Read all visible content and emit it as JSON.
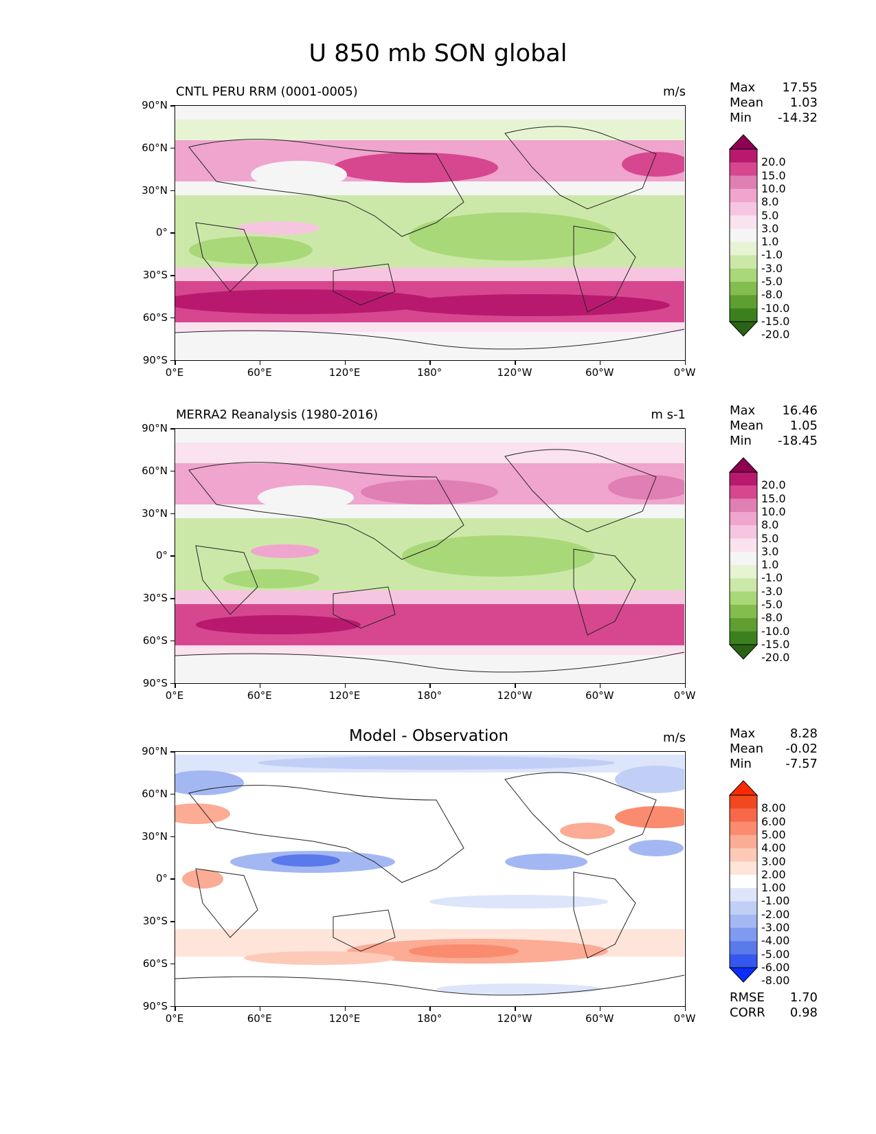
{
  "figure_title": "U 850 mb SON global",
  "x_ticks": [
    "0°E",
    "60°E",
    "120°E",
    "180°",
    "120°W",
    "60°W",
    "0°W"
  ],
  "y_ticks": [
    "90°N",
    "60°N",
    "30°N",
    "0°",
    "30°S",
    "60°S",
    "90°S"
  ],
  "panels": [
    {
      "title": "CNTL PERU RRM (0001-0005)",
      "units": "m/s",
      "stats": {
        "max_label": "Max",
        "max": "17.55",
        "mean_label": "Mean",
        "mean": "1.03",
        "min_label": "Min",
        "min": "-14.32"
      },
      "colorbar": {
        "labels": [
          "20.0",
          "15.0",
          "10.0",
          "8.0",
          "5.0",
          "3.0",
          "1.0",
          "-1.0",
          "-3.0",
          "-5.0",
          "-8.0",
          "-10.0",
          "-15.0",
          "-20.0"
        ],
        "colors": [
          "#8e0152",
          "#b8196f",
          "#d6478f",
          "#e07fb3",
          "#efa5cd",
          "#f6c6e0",
          "#fae2ef",
          "#f5f5f5",
          "#e7f4d3",
          "#cce8a9",
          "#a9d879",
          "#83bd4d",
          "#5f9e30",
          "#3c7f1f",
          "#2a6316"
        ]
      }
    },
    {
      "title": "MERRA2 Reanalysis (1980-2016)",
      "units": "m s-1",
      "stats": {
        "max_label": "Max",
        "max": "16.46",
        "mean_label": "Mean",
        "mean": "1.05",
        "min_label": "Min",
        "min": "-18.45"
      },
      "colorbar": {
        "labels": [
          "20.0",
          "15.0",
          "10.0",
          "8.0",
          "5.0",
          "3.0",
          "1.0",
          "-1.0",
          "-3.0",
          "-5.0",
          "-8.0",
          "-10.0",
          "-15.0",
          "-20.0"
        ],
        "colors": [
          "#8e0152",
          "#b8196f",
          "#d6478f",
          "#e07fb3",
          "#efa5cd",
          "#f6c6e0",
          "#fae2ef",
          "#f5f5f5",
          "#e7f4d3",
          "#cce8a9",
          "#a9d879",
          "#83bd4d",
          "#5f9e30",
          "#3c7f1f",
          "#2a6316"
        ]
      }
    },
    {
      "title": "Model - Observation",
      "units": "m/s",
      "stats": {
        "max_label": "Max",
        "max": "8.28",
        "mean_label": "Mean",
        "mean": "-0.02",
        "min_label": "Min",
        "min": "-7.57"
      },
      "extra_stats": {
        "rmse_label": "RMSE",
        "rmse": "1.70",
        "corr_label": "CORR",
        "corr": "0.98"
      },
      "colorbar": {
        "labels": [
          "8.00",
          "6.00",
          "5.00",
          "4.00",
          "3.00",
          "2.00",
          "1.00",
          "-1.00",
          "-2.00",
          "-3.00",
          "-4.00",
          "-5.00",
          "-6.00",
          "-8.00"
        ],
        "colors": [
          "#ff2a00",
          "#f2471f",
          "#f7684a",
          "#fa8b6f",
          "#fcab94",
          "#fdcab8",
          "#fee4d9",
          "#ffffff",
          "#dde5fb",
          "#c1cff7",
          "#a3b7f3",
          "#7f9aee",
          "#5a79ea",
          "#3458ee",
          "#0a2eff"
        ]
      }
    }
  ]
}
